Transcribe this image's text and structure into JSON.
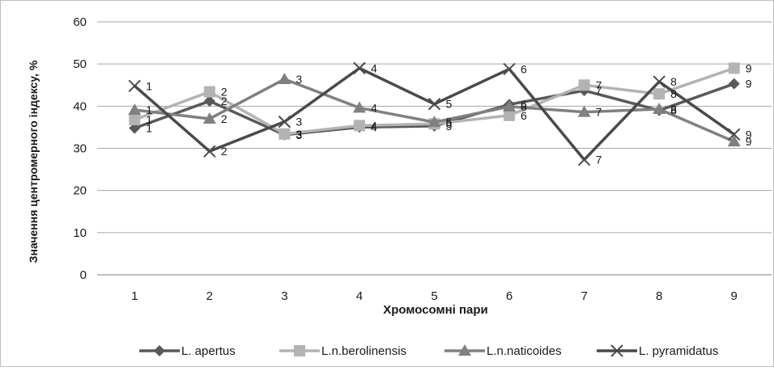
{
  "chart_data": {
    "type": "line",
    "title": "",
    "xlabel": "Хромосомні пари",
    "ylabel": "Значення центромерного індексу, %",
    "categories": [
      "1",
      "2",
      "3",
      "4",
      "5",
      "6",
      "7",
      "8",
      "9"
    ],
    "ylim": [
      0,
      60
    ],
    "yticks": [
      "0",
      "10",
      "20",
      "30",
      "40",
      "50",
      "60"
    ],
    "grid": true,
    "legend_position": "bottom",
    "data_labels": [
      "1",
      "2",
      "3",
      "4",
      "5",
      "6",
      "7",
      "8",
      "9"
    ],
    "series": [
      {
        "name": "L. apertus",
        "marker": "diamond",
        "color": "#595959",
        "values": [
          34.8,
          41.2,
          33.2,
          35.0,
          35.3,
          40.4,
          43.7,
          39.0,
          45.3
        ]
      },
      {
        "name": "L.n.berolinensis",
        "marker": "square",
        "color": "#b3b3b3",
        "values": [
          36.8,
          43.4,
          33.4,
          35.4,
          35.8,
          37.8,
          45.0,
          42.9,
          49.0
        ]
      },
      {
        "name": "L.n.naticoides",
        "marker": "triangle",
        "color": "#808080",
        "values": [
          39.1,
          37.0,
          46.4,
          39.6,
          36.2,
          39.9,
          38.6,
          39.3,
          31.6
        ]
      },
      {
        "name": "L. pyramidatus",
        "marker": "x",
        "color": "#4a4a4a",
        "values": [
          44.8,
          29.3,
          36.3,
          49.0,
          40.5,
          48.8,
          27.3,
          45.8,
          33.3
        ]
      }
    ]
  }
}
